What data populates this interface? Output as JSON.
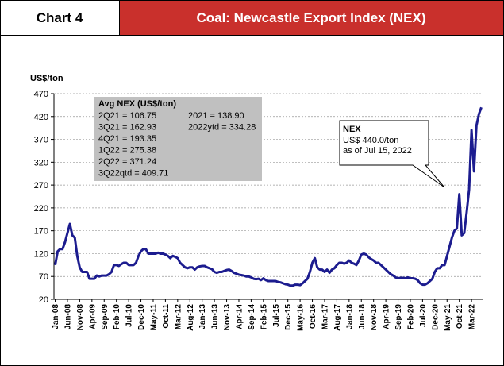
{
  "header": {
    "label": "Chart 4",
    "title": "Coal: Newcastle Export Index (NEX)"
  },
  "chart_data": {
    "type": "line",
    "y_label": "US$/ton",
    "ylim": [
      20,
      470
    ],
    "yticks": [
      20,
      70,
      120,
      170,
      220,
      270,
      320,
      370,
      420,
      470
    ],
    "grid": true,
    "categories": [
      "Jan-08",
      null,
      null,
      null,
      null,
      "Jun-08",
      null,
      null,
      null,
      null,
      "Nov-08",
      null,
      null,
      null,
      null,
      "Apr-09",
      null,
      null,
      null,
      null,
      "Sep-09",
      null,
      null,
      null,
      null,
      "Feb-10",
      null,
      null,
      null,
      null,
      "Jul-10",
      null,
      null,
      null,
      null,
      "Dec-10",
      null,
      null,
      null,
      null,
      "May-11",
      null,
      null,
      null,
      null,
      "Oct-11",
      null,
      null,
      null,
      null,
      "Mar-12",
      null,
      null,
      null,
      null,
      "Aug-12",
      null,
      null,
      null,
      null,
      "Jan-13",
      null,
      null,
      null,
      null,
      "Jun-13",
      null,
      null,
      null,
      null,
      "Nov-13",
      null,
      null,
      null,
      null,
      "Apr-14",
      null,
      null,
      null,
      null,
      "Sep-14",
      null,
      null,
      null,
      null,
      "Feb-15",
      null,
      null,
      null,
      null,
      "Jul-15",
      null,
      null,
      null,
      null,
      "Dec-15",
      null,
      null,
      null,
      null,
      "May-16",
      null,
      null,
      null,
      null,
      "Oct-16",
      null,
      null,
      null,
      null,
      "Mar-17",
      null,
      null,
      null,
      null,
      "Aug-17",
      null,
      null,
      null,
      null,
      "Jan-18",
      null,
      null,
      null,
      null,
      "Jun-18",
      null,
      null,
      null,
      null,
      "Nov-18",
      null,
      null,
      null,
      null,
      "Apr-19",
      null,
      null,
      null,
      null,
      "Sep-19",
      null,
      null,
      null,
      null,
      "Feb-20",
      null,
      null,
      null,
      null,
      "Jul-20",
      null,
      null,
      null,
      null,
      "Dec-20",
      null,
      null,
      null,
      null,
      "May-21",
      null,
      null,
      null,
      null,
      "Oct-21",
      null,
      null,
      null,
      null,
      "Mar-22",
      null,
      null,
      null,
      null
    ],
    "series": [
      {
        "name": "NEX",
        "color": "#1c1c8f",
        "values": [
          95,
          125,
          130,
          130,
          145,
          165,
          185,
          160,
          155,
          115,
          90,
          80,
          80,
          80,
          65,
          65,
          65,
          72,
          70,
          72,
          72,
          72,
          75,
          80,
          95,
          95,
          93,
          97,
          100,
          100,
          95,
          95,
          95,
          100,
          115,
          125,
          130,
          130,
          120,
          120,
          120,
          120,
          122,
          120,
          120,
          118,
          115,
          110,
          115,
          113,
          110,
          100,
          95,
          90,
          88,
          90,
          90,
          85,
          90,
          92,
          93,
          93,
          90,
          88,
          86,
          80,
          78,
          80,
          80,
          82,
          84,
          85,
          82,
          78,
          76,
          74,
          73,
          72,
          70,
          70,
          68,
          65,
          64,
          65,
          62,
          66,
          62,
          60,
          60,
          60,
          60,
          58,
          57,
          55,
          53,
          52,
          50,
          50,
          52,
          52,
          51,
          55,
          60,
          65,
          80,
          100,
          110,
          90,
          85,
          85,
          80,
          85,
          78,
          85,
          88,
          95,
          100,
          100,
          98,
          100,
          105,
          100,
          98,
          95,
          105,
          118,
          120,
          118,
          112,
          108,
          105,
          100,
          100,
          95,
          90,
          85,
          80,
          75,
          72,
          68,
          66,
          67,
          67,
          66,
          68,
          66,
          66,
          65,
          62,
          55,
          52,
          52,
          55,
          60,
          65,
          80,
          88,
          88,
          95,
          95,
          115,
          135,
          155,
          170,
          175,
          250,
          160,
          165,
          210,
          260,
          390,
          300,
          400,
          425,
          440
        ]
      }
    ],
    "averages": {
      "title": "Avg NEX (US$/ton)",
      "left": [
        "2Q21 = 106.75",
        "3Q21 = 162.93",
        "4Q21 = 193.35",
        "1Q22 = 275.38",
        "2Q22 = 371.24",
        "3Q22qtd = 409.71"
      ],
      "right": [
        "2021 = 138.90",
        "2022ytd = 334.28"
      ]
    },
    "callout": {
      "title": "NEX",
      "lines": [
        "US$ 440.0/ton",
        "as of Jul 15, 2022"
      ]
    }
  }
}
